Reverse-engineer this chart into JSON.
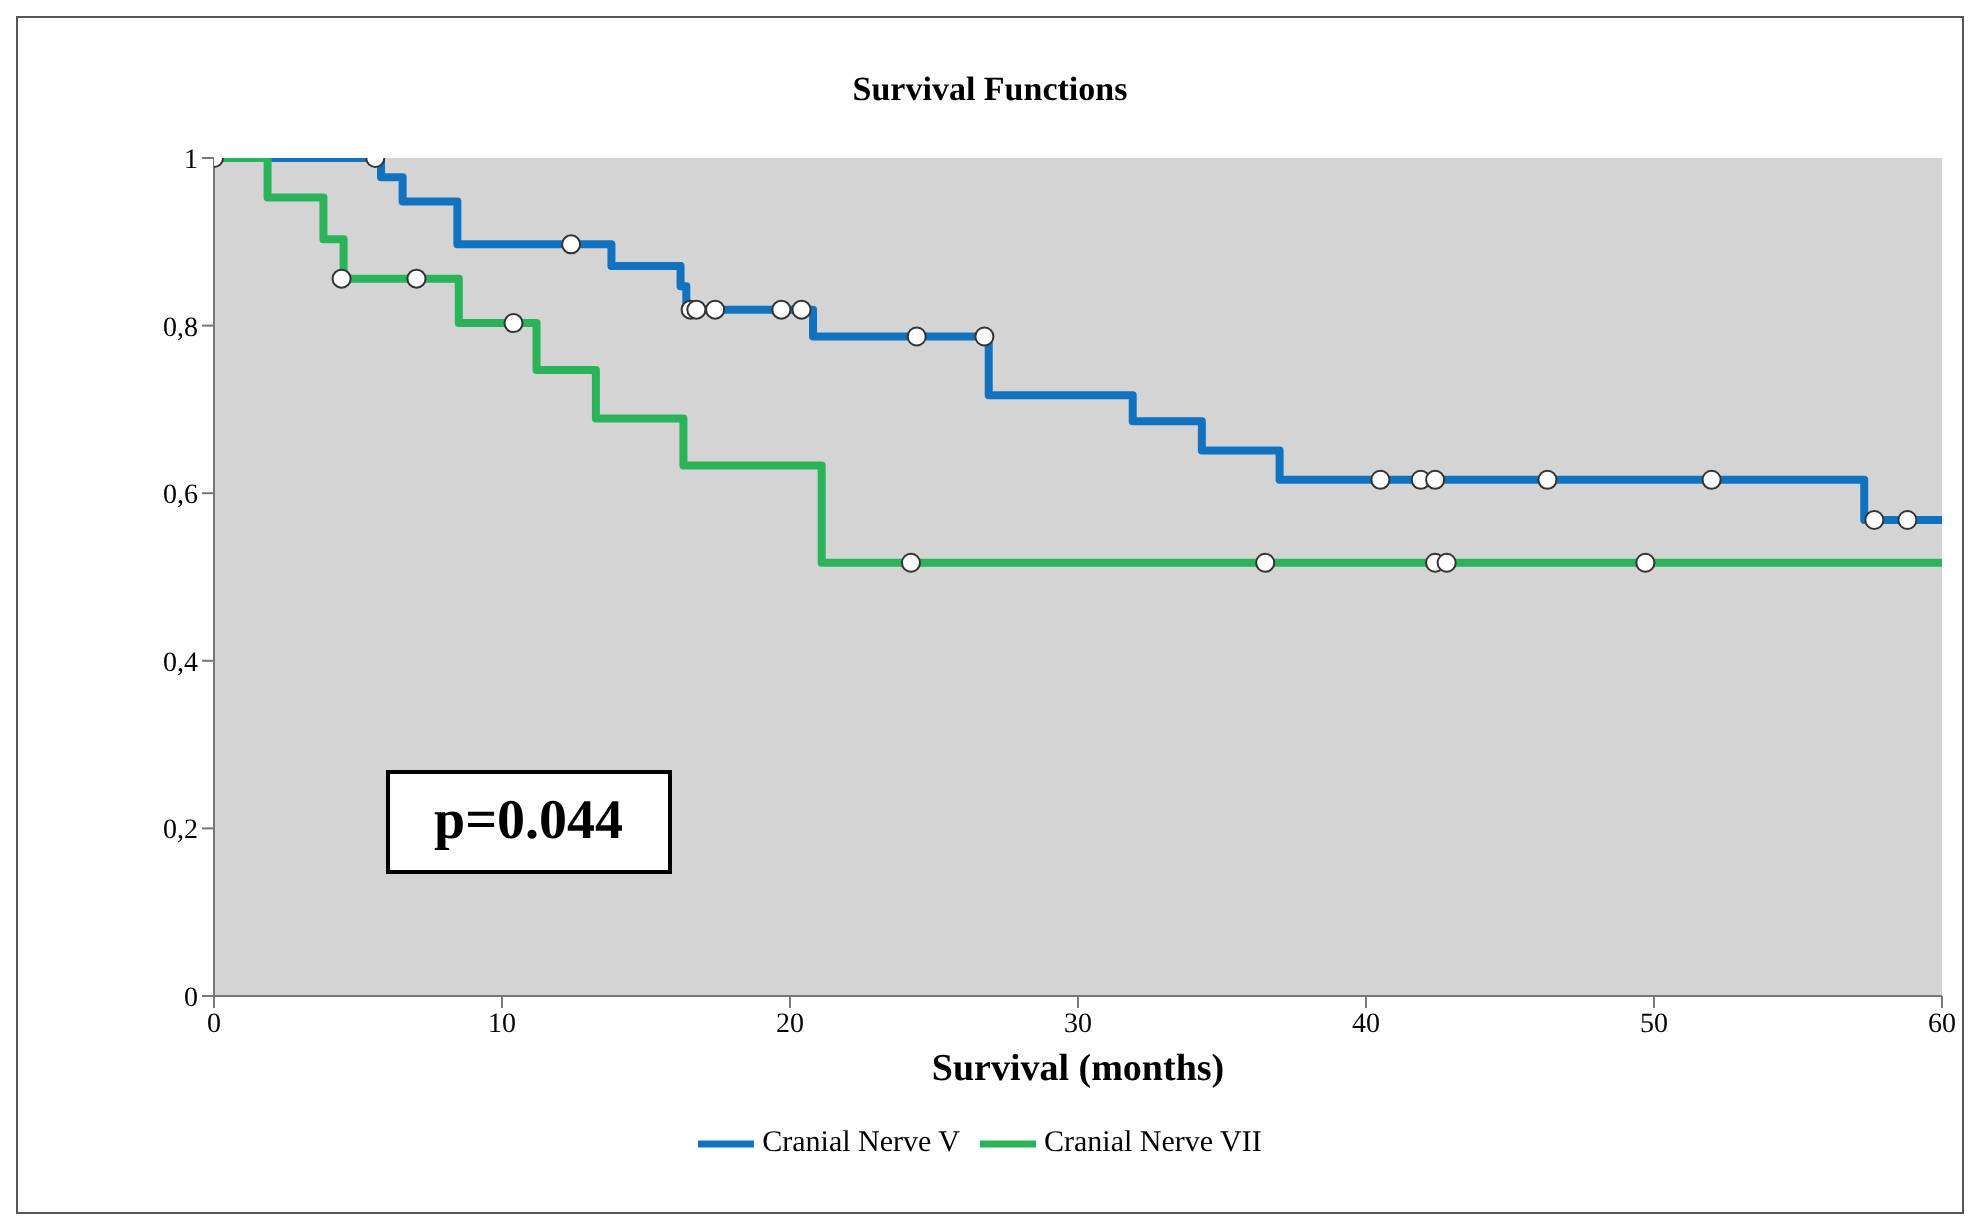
{
  "chart_data": {
    "type": "step",
    "title": "Survival Functions",
    "xlabel": "Survival (months)",
    "xlim": [
      0,
      60
    ],
    "xticks": [
      0,
      10,
      20,
      30,
      40,
      50,
      60
    ],
    "ylim": [
      0,
      1
    ],
    "yticks": [
      0,
      {
        "value": 0.2,
        "label": "0,2"
      },
      {
        "value": 0.4,
        "label": "0,4"
      },
      {
        "value": 0.6,
        "label": "0,6"
      },
      {
        "value": 0.8,
        "label": "0,8"
      },
      1
    ],
    "grid": false,
    "legend": "bottom",
    "marker": "none",
    "line_style": "solid",
    "annotations": [
      "p=0.044"
    ],
    "series": [
      {
        "name": "Cranial Nerve V",
        "color": "#1172c0",
        "x": [
          0,
          5.8,
          6.55,
          8.45,
          13.8,
          16.2,
          16.4,
          20.8,
          26.9,
          31.9,
          34.3,
          37.0,
          57.3,
          60
        ],
        "values": [
          1,
          0.977,
          0.948,
          0.897,
          0.871,
          0.847,
          0.819,
          0.787,
          0.717,
          0.686,
          0.651,
          0.616,
          0.568,
          0.568
        ]
      },
      {
        "name": "Cranial Nerve VII",
        "color": "#2bb35a",
        "x": [
          0,
          1.86,
          3.8,
          4.5,
          8.5,
          11.2,
          13.26,
          16.3,
          21.1,
          60
        ],
        "values": [
          1,
          0.953,
          0.903,
          0.856,
          0.803,
          0.747,
          0.689,
          0.633,
          0.517,
          0.517
        ]
      },
      {
        "type": "scatter",
        "marker": "circle",
        "color": "#ffffff",
        "x": [
          0,
          5.6,
          12.4,
          16.55,
          16.75,
          17.4,
          19.7,
          20.4,
          24.4,
          26.75,
          40.5,
          41.9,
          42.4,
          46.3,
          52.0,
          57.65,
          58.8
        ],
        "values": [
          1,
          1,
          0.897,
          0.819,
          0.819,
          0.819,
          0.819,
          0.819,
          0.787,
          0.787,
          0.616,
          0.616,
          0.616,
          0.616,
          0.616,
          0.568,
          0.568
        ]
      },
      {
        "type": "scatter",
        "marker": "circle",
        "color": "#ffffff",
        "x": [
          4.43,
          7.03,
          10.4,
          24.2,
          36.5,
          42.4,
          42.8,
          49.7
        ],
        "values": [
          0.856,
          0.856,
          0.803,
          0.517,
          0.517,
          0.517,
          0.517,
          0.517
        ]
      }
    ]
  }
}
